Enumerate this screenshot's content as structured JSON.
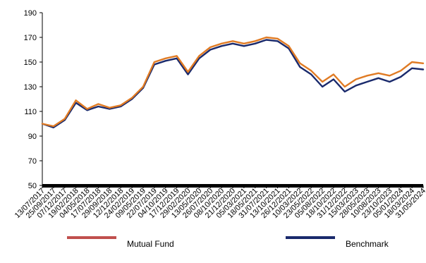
{
  "chart_data": {
    "type": "line",
    "y_axis": {
      "min": 50,
      "max": 190,
      "ticks": [
        "190",
        "170",
        "150",
        "130",
        "110",
        "90",
        "70",
        "50"
      ]
    },
    "x_tick_labels": [
      "13/07/2017",
      "25/09/2017",
      "07/12/2017",
      "19/02/2018",
      "04/05/2018",
      "17/07/2018",
      "29/09/2018",
      "12/12/2018",
      "24/02/2019",
      "09/05/2019",
      "22/07/2019",
      "04/10/2019",
      "17/12/2019",
      "29/02/2020",
      "13/05/2020",
      "26/07/2020",
      "08/10/2020",
      "21/12/2020",
      "05/03/2021",
      "18/05/2021",
      "31/07/2021",
      "13/10/2021",
      "26/12/2021",
      "10/03/2022",
      "23/05/2022",
      "05/08/2022",
      "18/10/2022",
      "31/12/2022",
      "15/03/2023",
      "28/05/2023",
      "10/08/2023",
      "23/10/2023",
      "05/01/2024",
      "18/03/2024",
      "31/05/2024"
    ],
    "x": [
      "13/07/2017",
      "25/09/2017",
      "07/12/2017",
      "19/02/2018",
      "04/05/2018",
      "17/07/2018",
      "29/09/2018",
      "12/12/2018",
      "24/02/2019",
      "09/05/2019",
      "22/07/2019",
      "04/10/2019",
      "17/12/2019",
      "29/02/2020",
      "13/05/2020",
      "26/07/2020",
      "08/10/2020",
      "21/12/2020",
      "05/03/2021",
      "18/05/2021",
      "31/07/2021",
      "13/10/2021",
      "26/12/2021",
      "10/03/2022",
      "23/05/2022",
      "05/08/2022",
      "18/10/2022",
      "31/12/2022",
      "15/03/2023",
      "28/05/2023",
      "10/08/2023",
      "23/10/2023",
      "05/01/2024",
      "18/03/2024",
      "31/05/2024"
    ],
    "series": [
      {
        "name": "Benchmark",
        "color": "#1a2a6c",
        "values": [
          100,
          97,
          103,
          117,
          111,
          114,
          112,
          114,
          120,
          129,
          148,
          151,
          153,
          140,
          153,
          160,
          163,
          165,
          163,
          165,
          168,
          167,
          161,
          146,
          140,
          130,
          136,
          126,
          131,
          134,
          137,
          134,
          138,
          145,
          144
        ]
      },
      {
        "name": "Mutual Fund",
        "color": "#e07b24",
        "values": [
          100,
          98,
          104,
          119,
          112,
          116,
          113,
          115,
          121,
          130,
          150,
          153,
          155,
          142,
          155,
          162,
          165,
          167,
          165,
          167,
          170,
          169,
          163,
          149,
          143,
          134,
          140,
          130,
          136,
          139,
          141,
          139,
          143,
          150,
          149
        ]
      }
    ],
    "legend": [
      {
        "label": "Mutual Fund",
        "color": "#c0504d"
      },
      {
        "label": "Benchmark",
        "color": "#1a2a6c"
      }
    ],
    "legend_position": "bottom",
    "grid": false
  }
}
